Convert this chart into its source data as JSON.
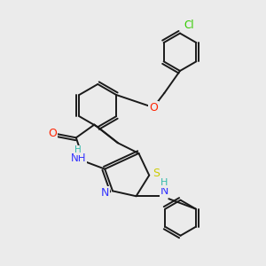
{
  "background_color": "#ebebeb",
  "bond_color": "#1a1a1a",
  "atom_colors": {
    "S": "#cccc00",
    "N": "#3333ff",
    "O": "#ff2200",
    "Cl": "#33cc00",
    "H": "#33bbaa",
    "C": "#1a1a1a"
  },
  "figsize": [
    3.0,
    3.0
  ],
  "dpi": 100
}
